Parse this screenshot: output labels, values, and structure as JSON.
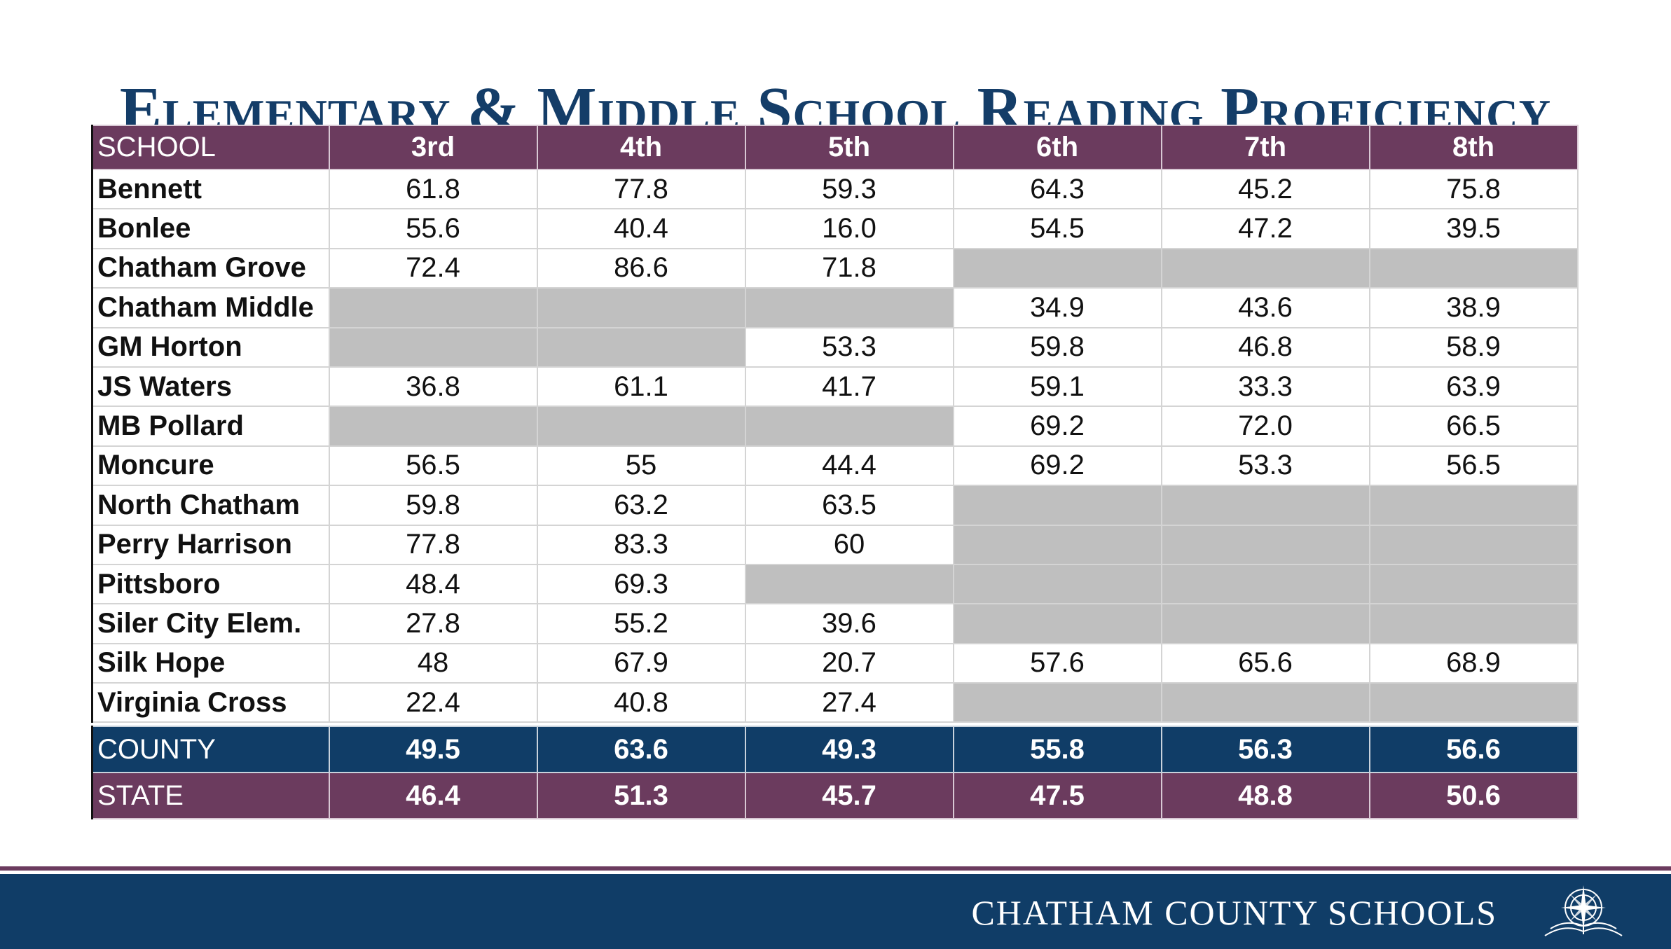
{
  "title": "Elementary & Middle School Reading Proficiency",
  "table": {
    "headers": [
      "SCHOOL",
      "3rd",
      "4th",
      "5th",
      "6th",
      "7th",
      "8th"
    ],
    "rows": [
      {
        "school": "Bennett",
        "values": [
          "61.8",
          "77.8",
          "59.3",
          "64.3",
          "45.2",
          "75.8"
        ]
      },
      {
        "school": "Bonlee",
        "values": [
          "55.6",
          "40.4",
          "16.0",
          "54.5",
          "47.2",
          "39.5"
        ]
      },
      {
        "school": "Chatham Grove",
        "values": [
          "72.4",
          "86.6",
          "71.8",
          null,
          null,
          null
        ]
      },
      {
        "school": "Chatham Middle",
        "values": [
          null,
          null,
          null,
          "34.9",
          "43.6",
          "38.9"
        ]
      },
      {
        "school": "GM Horton",
        "values": [
          null,
          null,
          "53.3",
          "59.8",
          "46.8",
          "58.9"
        ]
      },
      {
        "school": "JS Waters",
        "values": [
          "36.8",
          "61.1",
          "41.7",
          "59.1",
          "33.3",
          "63.9"
        ]
      },
      {
        "school": "MB Pollard",
        "values": [
          null,
          null,
          null,
          "69.2",
          "72.0",
          "66.5"
        ]
      },
      {
        "school": "Moncure",
        "values": [
          "56.5",
          "55",
          "44.4",
          "69.2",
          "53.3",
          "56.5"
        ]
      },
      {
        "school": "North Chatham",
        "values": [
          "59.8",
          "63.2",
          "63.5",
          null,
          null,
          null
        ]
      },
      {
        "school": "Perry Harrison",
        "values": [
          "77.8",
          "83.3",
          "60",
          null,
          null,
          null
        ]
      },
      {
        "school": "Pittsboro",
        "values": [
          "48.4",
          "69.3",
          null,
          null,
          null,
          null
        ]
      },
      {
        "school": "Siler City Elem.",
        "values": [
          "27.8",
          "55.2",
          "39.6",
          null,
          null,
          null
        ]
      },
      {
        "school": "Silk Hope",
        "values": [
          "48",
          "67.9",
          "20.7",
          "57.6",
          "65.6",
          "68.9"
        ]
      },
      {
        "school": "Virginia Cross",
        "values": [
          "22.4",
          "40.8",
          "27.4",
          null,
          null,
          null
        ]
      }
    ],
    "county": {
      "label": "COUNTY",
      "values": [
        "49.5",
        "63.6",
        "49.3",
        "55.8",
        "56.3",
        "56.6"
      ]
    },
    "state": {
      "label": "STATE",
      "values": [
        "46.4",
        "51.3",
        "45.7",
        "47.5",
        "48.8",
        "50.6"
      ]
    }
  },
  "footer": {
    "org_name": "CHATHAM COUNTY SCHOOLS",
    "logo_icon": "open-book-compass-logo"
  },
  "colors": {
    "title": "#143d68",
    "header_maroon": "#6b3b5e",
    "county_navy": "#103d67",
    "empty_cell": "#bfbfbf"
  }
}
